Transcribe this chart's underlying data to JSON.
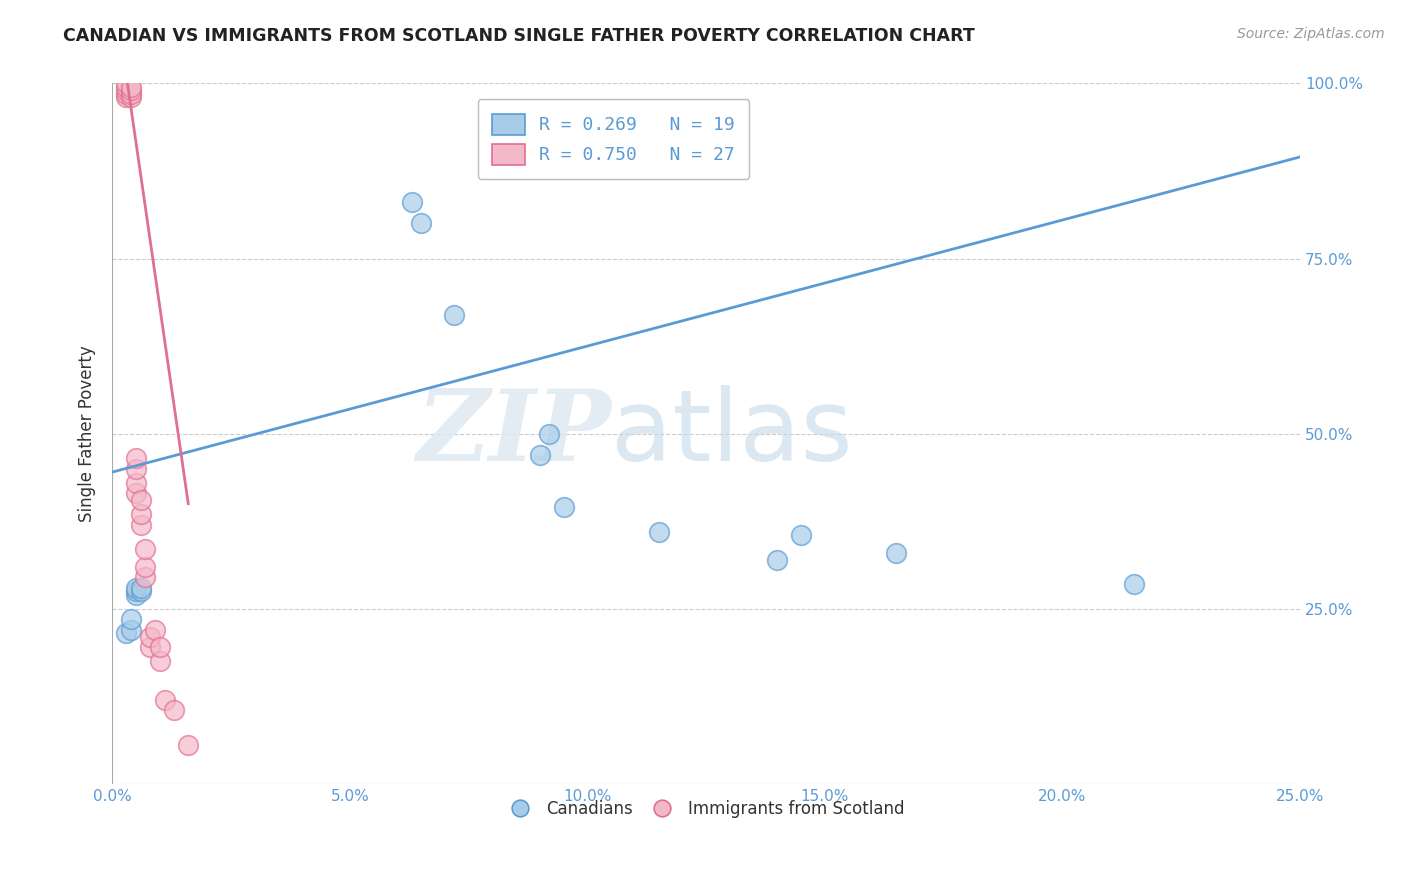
{
  "title": "CANADIAN VS IMMIGRANTS FROM SCOTLAND SINGLE FATHER POVERTY CORRELATION CHART",
  "source": "Source: ZipAtlas.com",
  "ylabel_label": "Single Father Poverty",
  "watermark_zip": "ZIP",
  "watermark_atlas": "atlas",
  "xlim": [
    0.0,
    0.25
  ],
  "ylim": [
    0.0,
    1.0
  ],
  "xtick_labels": [
    "0.0%",
    "5.0%",
    "10.0%",
    "15.0%",
    "20.0%",
    "25.0%"
  ],
  "xtick_values": [
    0.0,
    0.05,
    0.1,
    0.15,
    0.2,
    0.25
  ],
  "ytick_labels": [
    "25.0%",
    "50.0%",
    "75.0%",
    "100.0%"
  ],
  "ytick_values": [
    0.25,
    0.5,
    0.75,
    1.0
  ],
  "canadians_x": [
    0.003,
    0.004,
    0.004,
    0.005,
    0.005,
    0.005,
    0.006,
    0.006,
    0.063,
    0.065,
    0.072,
    0.09,
    0.092,
    0.095,
    0.115,
    0.145,
    0.165,
    0.215,
    0.14
  ],
  "canadians_y": [
    0.215,
    0.22,
    0.235,
    0.27,
    0.275,
    0.28,
    0.275,
    0.28,
    0.83,
    0.8,
    0.67,
    0.47,
    0.5,
    0.395,
    0.36,
    0.355,
    0.33,
    0.285,
    0.32
  ],
  "scotland_x": [
    0.003,
    0.003,
    0.003,
    0.003,
    0.003,
    0.004,
    0.004,
    0.004,
    0.004,
    0.005,
    0.005,
    0.005,
    0.005,
    0.006,
    0.006,
    0.006,
    0.007,
    0.007,
    0.007,
    0.008,
    0.008,
    0.009,
    0.01,
    0.01,
    0.011,
    0.013,
    0.016
  ],
  "scotland_y": [
    0.98,
    0.985,
    0.99,
    0.995,
    1.0,
    0.98,
    0.985,
    0.99,
    0.995,
    0.415,
    0.43,
    0.45,
    0.465,
    0.37,
    0.385,
    0.405,
    0.295,
    0.31,
    0.335,
    0.195,
    0.21,
    0.22,
    0.175,
    0.195,
    0.12,
    0.105,
    0.055
  ],
  "blue_regression": [
    0.0,
    0.25,
    0.445,
    0.895
  ],
  "pink_regression": [
    0.0,
    0.016,
    1.15,
    0.4
  ],
  "blue_color": "#a8cce8",
  "blue_edge_color": "#5b9bd5",
  "pink_color": "#f4b8cb",
  "pink_edge_color": "#e07090",
  "blue_line_color": "#5b9bd5",
  "pink_line_color": "#e07090",
  "legend_text_blue": "R = 0.269   N = 19",
  "legend_text_pink": "R = 0.750   N = 27",
  "background_color": "#ffffff",
  "grid_color": "#cccccc"
}
